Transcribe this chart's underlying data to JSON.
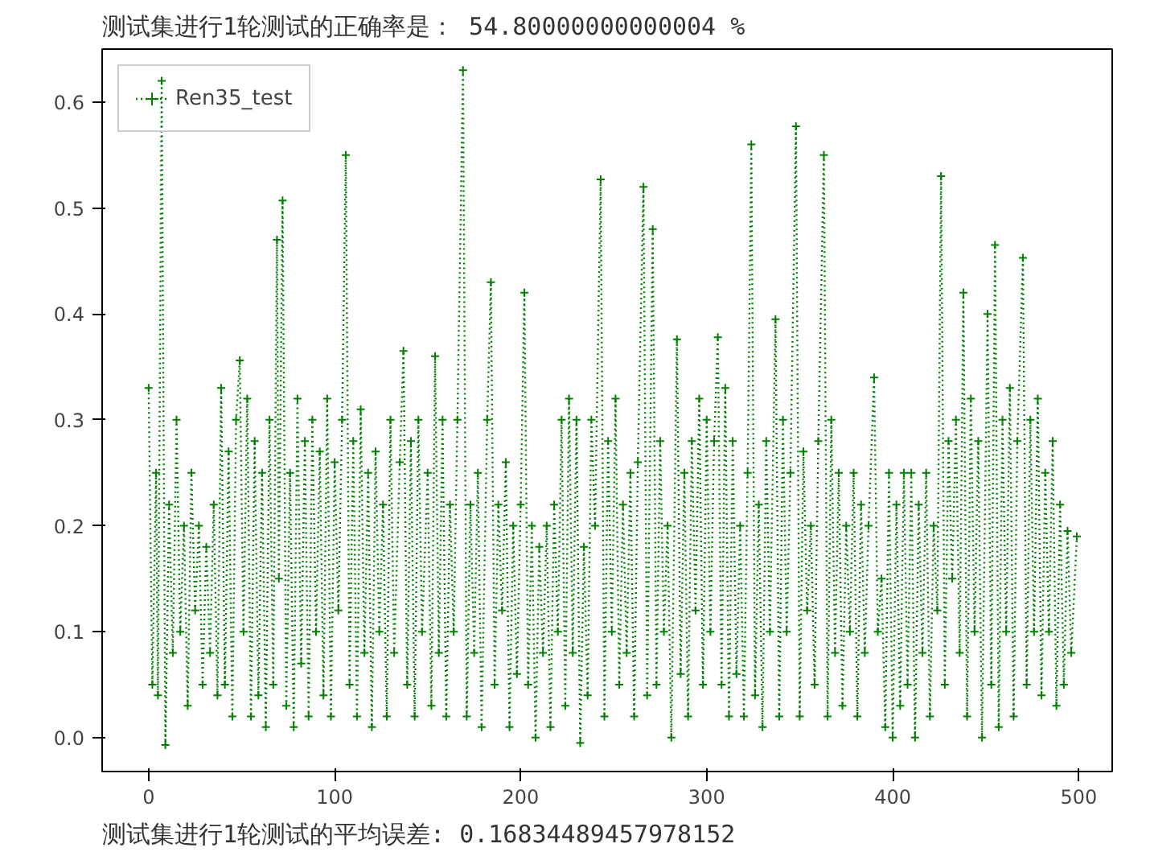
{
  "chart_data": {
    "type": "line",
    "title": "测试集进行1轮测试的正确率是：  54.80000000000004 %",
    "annotations": [
      "测试集进行1轮测试的平均误差: 0.16834489457978152"
    ],
    "series": [
      {
        "name": "Ren35_test",
        "color": "#008000",
        "x": [
          0,
          2,
          4,
          5,
          7,
          9,
          11,
          13,
          15,
          17,
          19,
          21,
          23,
          25,
          27,
          29,
          31,
          33,
          35,
          37,
          39,
          41,
          43,
          45,
          47,
          49,
          51,
          53,
          55,
          57,
          59,
          61,
          63,
          65,
          67,
          69,
          70,
          72,
          74,
          76,
          78,
          80,
          82,
          84,
          86,
          88,
          90,
          92,
          94,
          96,
          98,
          100,
          102,
          104,
          106,
          108,
          110,
          112,
          114,
          116,
          118,
          120,
          122,
          124,
          126,
          128,
          130,
          132,
          135,
          137,
          139,
          141,
          143,
          145,
          147,
          150,
          152,
          154,
          156,
          158,
          160,
          162,
          164,
          166,
          169,
          171,
          173,
          175,
          177,
          179,
          182,
          184,
          186,
          188,
          190,
          192,
          194,
          196,
          198,
          200,
          202,
          204,
          206,
          208,
          210,
          212,
          214,
          216,
          218,
          220,
          222,
          224,
          226,
          228,
          230,
          232,
          234,
          236,
          238,
          240,
          243,
          245,
          247,
          249,
          251,
          253,
          255,
          257,
          259,
          261,
          263,
          266,
          268,
          271,
          273,
          275,
          277,
          279,
          281,
          284,
          286,
          288,
          290,
          292,
          294,
          296,
          298,
          300,
          302,
          304,
          306,
          308,
          310,
          312,
          314,
          316,
          318,
          320,
          322,
          324,
          326,
          328,
          330,
          332,
          334,
          337,
          339,
          341,
          343,
          345,
          348,
          350,
          352,
          354,
          356,
          358,
          360,
          363,
          365,
          367,
          369,
          371,
          373,
          375,
          377,
          379,
          381,
          383,
          385,
          387,
          390,
          392,
          394,
          396,
          398,
          400,
          402,
          404,
          406,
          408,
          410,
          412,
          414,
          416,
          418,
          420,
          422,
          424,
          426,
          428,
          430,
          432,
          434,
          436,
          438,
          440,
          442,
          444,
          446,
          448,
          451,
          453,
          455,
          457,
          459,
          461,
          463,
          465,
          467,
          470,
          472,
          474,
          476,
          478,
          480,
          482,
          484,
          486,
          488,
          490,
          492,
          494,
          496,
          499
        ],
        "values": [
          0.33,
          0.05,
          0.25,
          0.04,
          0.62,
          -0.007,
          0.22,
          0.08,
          0.3,
          0.1,
          0.2,
          0.03,
          0.25,
          0.12,
          0.2,
          0.05,
          0.18,
          0.08,
          0.22,
          0.04,
          0.33,
          0.05,
          0.27,
          0.02,
          0.3,
          0.356,
          0.1,
          0.32,
          0.02,
          0.28,
          0.04,
          0.25,
          0.01,
          0.3,
          0.05,
          0.47,
          0.15,
          0.507,
          0.03,
          0.25,
          0.01,
          0.32,
          0.07,
          0.28,
          0.02,
          0.3,
          0.1,
          0.27,
          0.04,
          0.32,
          0.02,
          0.26,
          0.12,
          0.3,
          0.55,
          0.05,
          0.28,
          0.02,
          0.31,
          0.08,
          0.25,
          0.01,
          0.27,
          0.1,
          0.22,
          0.02,
          0.3,
          0.08,
          0.26,
          0.365,
          0.05,
          0.28,
          0.02,
          0.3,
          0.1,
          0.25,
          0.03,
          0.36,
          0.08,
          0.3,
          0.02,
          0.22,
          0.1,
          0.3,
          0.63,
          0.02,
          0.22,
          0.08,
          0.25,
          0.01,
          0.3,
          0.43,
          0.05,
          0.22,
          0.12,
          0.26,
          0.01,
          0.2,
          0.06,
          0.22,
          0.42,
          0.05,
          0.2,
          0.0,
          0.18,
          0.08,
          0.2,
          0.01,
          0.22,
          0.1,
          0.3,
          0.03,
          0.32,
          0.08,
          0.3,
          -0.005,
          0.18,
          0.04,
          0.3,
          0.2,
          0.527,
          0.02,
          0.28,
          0.1,
          0.32,
          0.05,
          0.22,
          0.08,
          0.25,
          0.02,
          0.26,
          0.52,
          0.04,
          0.48,
          0.05,
          0.28,
          0.1,
          0.2,
          0.0,
          0.376,
          0.06,
          0.25,
          0.02,
          0.28,
          0.12,
          0.32,
          0.05,
          0.3,
          0.1,
          0.28,
          0.378,
          0.05,
          0.33,
          0.02,
          0.28,
          0.06,
          0.2,
          0.02,
          0.25,
          0.56,
          0.04,
          0.22,
          0.01,
          0.28,
          0.1,
          0.395,
          0.02,
          0.3,
          0.1,
          0.25,
          0.577,
          0.02,
          0.27,
          0.12,
          0.2,
          0.05,
          0.28,
          0.55,
          0.02,
          0.3,
          0.08,
          0.25,
          0.03,
          0.2,
          0.1,
          0.25,
          0.02,
          0.22,
          0.08,
          0.2,
          0.34,
          0.1,
          0.15,
          0.01,
          0.25,
          0.0,
          0.22,
          0.03,
          0.25,
          0.05,
          0.25,
          0.0,
          0.22,
          0.08,
          0.25,
          0.02,
          0.2,
          0.12,
          0.53,
          0.05,
          0.28,
          0.15,
          0.3,
          0.08,
          0.42,
          0.02,
          0.32,
          0.1,
          0.28,
          0.0,
          0.4,
          0.05,
          0.465,
          0.01,
          0.3,
          0.1,
          0.33,
          0.02,
          0.28,
          0.453,
          0.05,
          0.3,
          0.1,
          0.32,
          0.04,
          0.25,
          0.1,
          0.28,
          0.03,
          0.22,
          0.05,
          0.195,
          0.08,
          0.19
        ]
      }
    ],
    "xlim": [
      -25,
      518
    ],
    "ylim": [
      -0.032,
      0.65
    ],
    "xticks": [
      0,
      100,
      200,
      300,
      400,
      500
    ],
    "yticks": [
      {
        "value": 0,
        "label": "0.0"
      },
      0.1,
      0.2,
      0.3,
      0.4,
      0.5,
      0.6
    ],
    "grid": false,
    "legend": "top left",
    "marker": "cross",
    "line_style": "dotted"
  }
}
